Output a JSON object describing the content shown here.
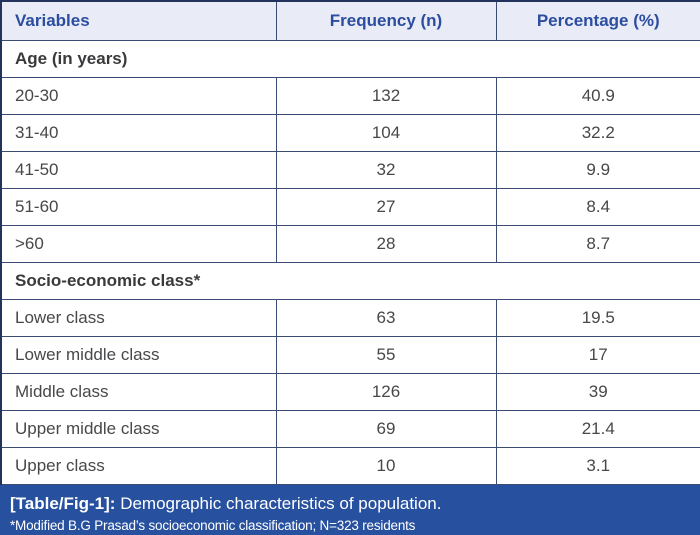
{
  "table": {
    "columns": [
      "Variables",
      "Frequency (n)",
      "Percentage (%)"
    ],
    "sections": [
      {
        "title": "Age (in years)",
        "rows": [
          [
            "20-30",
            "132",
            "40.9"
          ],
          [
            "31-40",
            "104",
            "32.2"
          ],
          [
            "41-50",
            "32",
            "9.9"
          ],
          [
            "51-60",
            "27",
            "8.4"
          ],
          [
            ">60",
            "28",
            "8.7"
          ]
        ]
      },
      {
        "title": "Socio-economic class*",
        "rows": [
          [
            "Lower class",
            "63",
            "19.5"
          ],
          [
            "Lower middle class",
            "55",
            "17"
          ],
          [
            "Middle class",
            "126",
            "39"
          ],
          [
            "Upper middle class",
            "69",
            "21.4"
          ],
          [
            "Upper class",
            "10",
            "3.1"
          ]
        ]
      }
    ]
  },
  "caption": {
    "label": "[Table/Fig-1]:",
    "text": "Demographic characteristics of population.",
    "footnote": "*Modified B.G Prasad’s socioeconomic classification; N=323 residents"
  },
  "colors": {
    "header_bg": "#e9ecf6",
    "header_text": "#2b4da0",
    "caption_bg": "#27509e",
    "border": "#3c4b74",
    "outer_border": "#22345c",
    "cell_text": "#47484a"
  }
}
